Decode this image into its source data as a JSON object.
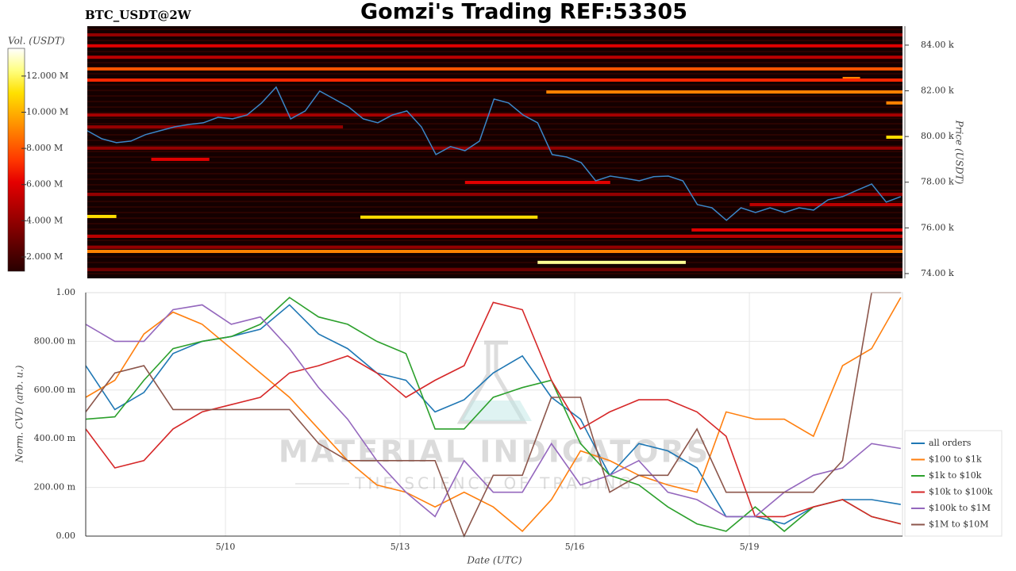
{
  "title": "Gomzi's Trading REF:53305",
  "chart_data": [
    {
      "type": "heatmap",
      "title": "BTC_USDT@2W",
      "ylabel": "Price (USDT)",
      "colorbar_label": "Vol. (USDT)",
      "colorscale": "hot",
      "xlim": [
        7.6,
        21.63
      ],
      "ylim": [
        73790,
        84830
      ],
      "yticks": [
        {
          "value": 74000,
          "label": "74.00 k"
        },
        {
          "value": 76000,
          "label": "76.00 k"
        },
        {
          "value": 78000,
          "label": "78.00 k"
        },
        {
          "value": 80000,
          "label": "80.00 k"
        },
        {
          "value": 82000,
          "label": "82.00 k"
        },
        {
          "value": 84000,
          "label": "84.00 k"
        }
      ],
      "clim": [
        1210000,
        13530000
      ],
      "cticks": [
        {
          "value": 2000000,
          "label": "2.000 M"
        },
        {
          "value": 4000000,
          "label": "4.000 M"
        },
        {
          "value": 6000000,
          "label": "6.000 M"
        },
        {
          "value": 8000000,
          "label": "8.000 M"
        },
        {
          "value": 10000000,
          "label": "10.000 M"
        },
        {
          "value": 12000000,
          "label": "12.000 M"
        }
      ],
      "levels": [
        {
          "price": 84450,
          "start": 7.6,
          "end": 21.63,
          "volume": 4000000
        },
        {
          "price": 83970,
          "start": 7.6,
          "end": 21.63,
          "volume": 6000000
        },
        {
          "price": 83470,
          "start": 7.6,
          "end": 21.63,
          "volume": 5000000
        },
        {
          "price": 82960,
          "start": 7.6,
          "end": 21.63,
          "volume": 8000000
        },
        {
          "price": 82540,
          "start": 20.6,
          "end": 20.9,
          "volume": 9000000
        },
        {
          "price": 82470,
          "start": 7.6,
          "end": 21.63,
          "volume": 7000000
        },
        {
          "price": 81950,
          "start": 15.5,
          "end": 21.63,
          "volume": 9000000
        },
        {
          "price": 81470,
          "start": 21.35,
          "end": 21.63,
          "volume": 9000000
        },
        {
          "price": 80940,
          "start": 7.6,
          "end": 21.63,
          "volume": 4500000
        },
        {
          "price": 80420,
          "start": 7.6,
          "end": 12.0,
          "volume": 4000000
        },
        {
          "price": 79970,
          "start": 21.35,
          "end": 21.63,
          "volume": 11000000
        },
        {
          "price": 79490,
          "start": 7.6,
          "end": 21.63,
          "volume": 4000000
        },
        {
          "price": 79000,
          "start": 8.7,
          "end": 9.7,
          "volume": 6000000
        },
        {
          "price": 77990,
          "start": 14.1,
          "end": 16.6,
          "volume": 6000000
        },
        {
          "price": 77470,
          "start": 7.6,
          "end": 21.63,
          "volume": 4000000
        },
        {
          "price": 77020,
          "start": 19.0,
          "end": 21.63,
          "volume": 5000000
        },
        {
          "price": 76500,
          "start": 7.6,
          "end": 8.1,
          "volume": 11000000
        },
        {
          "price": 76470,
          "start": 12.3,
          "end": 15.35,
          "volume": 11000000
        },
        {
          "price": 75910,
          "start": 18.0,
          "end": 21.63,
          "volume": 6000000
        },
        {
          "price": 75630,
          "start": 7.6,
          "end": 21.63,
          "volume": 5000000
        },
        {
          "price": 75150,
          "start": 7.6,
          "end": 21.63,
          "volume": 4000000
        },
        {
          "price": 74970,
          "start": 7.6,
          "end": 21.63,
          "volume": 9000000
        },
        {
          "price": 74490,
          "start": 15.35,
          "end": 17.9,
          "volume": 12500000
        },
        {
          "price": 74170,
          "start": 7.6,
          "end": 21.63,
          "volume": 3000000
        }
      ],
      "price": {
        "color": "#3a86c8",
        "x": [
          7.6,
          7.85,
          8.1,
          8.35,
          8.6,
          8.85,
          9.1,
          9.35,
          9.6,
          9.85,
          10.1,
          10.35,
          10.6,
          10.85,
          11.1,
          11.35,
          11.6,
          11.85,
          12.1,
          12.35,
          12.6,
          12.85,
          13.1,
          13.35,
          13.6,
          13.85,
          14.1,
          14.35,
          14.6,
          14.85,
          15.1,
          15.35,
          15.6,
          15.85,
          16.1,
          16.35,
          16.6,
          16.85,
          17.1,
          17.35,
          17.6,
          17.85,
          18.1,
          18.35,
          18.6,
          18.85,
          19.1,
          19.35,
          19.6,
          19.85,
          20.1,
          20.35,
          20.6,
          20.85,
          21.1,
          21.35,
          21.6
        ],
        "values": [
          80250,
          79900,
          79730,
          79800,
          80080,
          80250,
          80420,
          80530,
          80600,
          80840,
          80770,
          80940,
          81470,
          82160,
          80770,
          81120,
          81990,
          81640,
          81290,
          80770,
          80600,
          80940,
          81120,
          80420,
          79210,
          79560,
          79380,
          79800,
          81640,
          81470,
          80940,
          80600,
          79210,
          79100,
          78860,
          78060,
          78270,
          78170,
          78060,
          78240,
          78270,
          78060,
          77020,
          76880,
          76330,
          76880,
          76670,
          76880,
          76670,
          76880,
          76780,
          77230,
          77370,
          77650,
          77920,
          77130,
          77370
        ]
      }
    },
    {
      "type": "line",
      "xlabel": "Date (UTC)",
      "ylabel": "Norm. CVD (arb. u.)",
      "grid": true,
      "legend": "lower-right",
      "annotations": [
        "MATERIAL INDICATORS",
        "THE SCIENCE OF TRADING"
      ],
      "xlim": [
        7.6,
        21.63
      ],
      "ylim": [
        0,
        1
      ],
      "xticks": [
        {
          "value": 10,
          "label": "5/10"
        },
        {
          "value": 13,
          "label": "5/13"
        },
        {
          "value": 16,
          "label": "5/16"
        },
        {
          "value": 19,
          "label": "5/19"
        }
      ],
      "yticks": [
        {
          "value": 0,
          "label": "0.00"
        },
        {
          "value": 0.2,
          "label": "200.00 m"
        },
        {
          "value": 0.4,
          "label": "400.00 m"
        },
        {
          "value": 0.6,
          "label": "600.00 m"
        },
        {
          "value": 0.8,
          "label": "800.00 m"
        },
        {
          "value": 1,
          "label": "1.00"
        }
      ],
      "x": [
        7.6,
        8.1,
        8.6,
        9.1,
        9.6,
        10.1,
        10.6,
        11.1,
        11.6,
        12.1,
        12.6,
        13.1,
        13.6,
        14.1,
        14.6,
        15.1,
        15.6,
        16.1,
        16.6,
        17.1,
        17.6,
        18.1,
        18.6,
        19.1,
        19.6,
        20.1,
        20.6,
        21.1,
        21.6
      ],
      "series": [
        {
          "name": "all orders",
          "color": "#1f77b4",
          "values": [
            0.7,
            0.52,
            0.59,
            0.75,
            0.8,
            0.82,
            0.85,
            0.95,
            0.83,
            0.77,
            0.67,
            0.64,
            0.51,
            0.56,
            0.67,
            0.74,
            0.57,
            0.48,
            0.25,
            0.38,
            0.35,
            0.28,
            0.08,
            0.08,
            0.05,
            0.12,
            0.15,
            0.15,
            0.13
          ]
        },
        {
          "name": "$100 to $1k",
          "color": "#ff7f0e",
          "values": [
            0.57,
            0.64,
            0.83,
            0.92,
            0.87,
            0.77,
            0.67,
            0.57,
            0.44,
            0.31,
            0.21,
            0.18,
            0.12,
            0.18,
            0.12,
            0.02,
            0.15,
            0.35,
            0.31,
            0.25,
            0.21,
            0.18,
            0.51,
            0.48,
            0.48,
            0.41,
            0.7,
            0.77,
            0.98
          ]
        },
        {
          "name": "$1k to $10k",
          "color": "#2ca02c",
          "values": [
            0.48,
            0.49,
            0.64,
            0.77,
            0.8,
            0.82,
            0.87,
            0.98,
            0.9,
            0.87,
            0.8,
            0.75,
            0.44,
            0.44,
            0.57,
            0.61,
            0.64,
            0.38,
            0.25,
            0.21,
            0.12,
            0.05,
            0.02,
            0.12,
            0.02,
            0.12,
            0.15,
            0.08,
            0.05
          ]
        },
        {
          "name": "$10k to $100k",
          "color": "#d62728",
          "values": [
            0.44,
            0.28,
            0.31,
            0.44,
            0.51,
            0.54,
            0.57,
            0.67,
            0.7,
            0.74,
            0.67,
            0.57,
            0.64,
            0.7,
            0.96,
            0.93,
            0.64,
            0.44,
            0.51,
            0.56,
            0.56,
            0.51,
            0.41,
            0.08,
            0.08,
            0.12,
            0.15,
            0.08,
            0.05
          ]
        },
        {
          "name": "$100k to $1M",
          "color": "#9467bd",
          "values": [
            0.87,
            0.8,
            0.8,
            0.93,
            0.95,
            0.87,
            0.9,
            0.77,
            0.61,
            0.48,
            0.31,
            0.18,
            0.08,
            0.31,
            0.18,
            0.18,
            0.38,
            0.21,
            0.25,
            0.31,
            0.18,
            0.15,
            0.08,
            0.08,
            0.18,
            0.25,
            0.28,
            0.38,
            0.36
          ]
        },
        {
          "name": "$1M to $10M",
          "color": "#8c564b",
          "values": [
            0.51,
            0.67,
            0.7,
            0.52,
            0.52,
            0.52,
            0.52,
            0.52,
            0.38,
            0.31,
            0.31,
            0.31,
            0.31,
            0.0,
            0.25,
            0.25,
            0.57,
            0.57,
            0.18,
            0.25,
            0.25,
            0.44,
            0.18,
            0.18,
            0.18,
            0.18,
            0.31,
            1.0,
            1.0
          ]
        }
      ]
    }
  ]
}
